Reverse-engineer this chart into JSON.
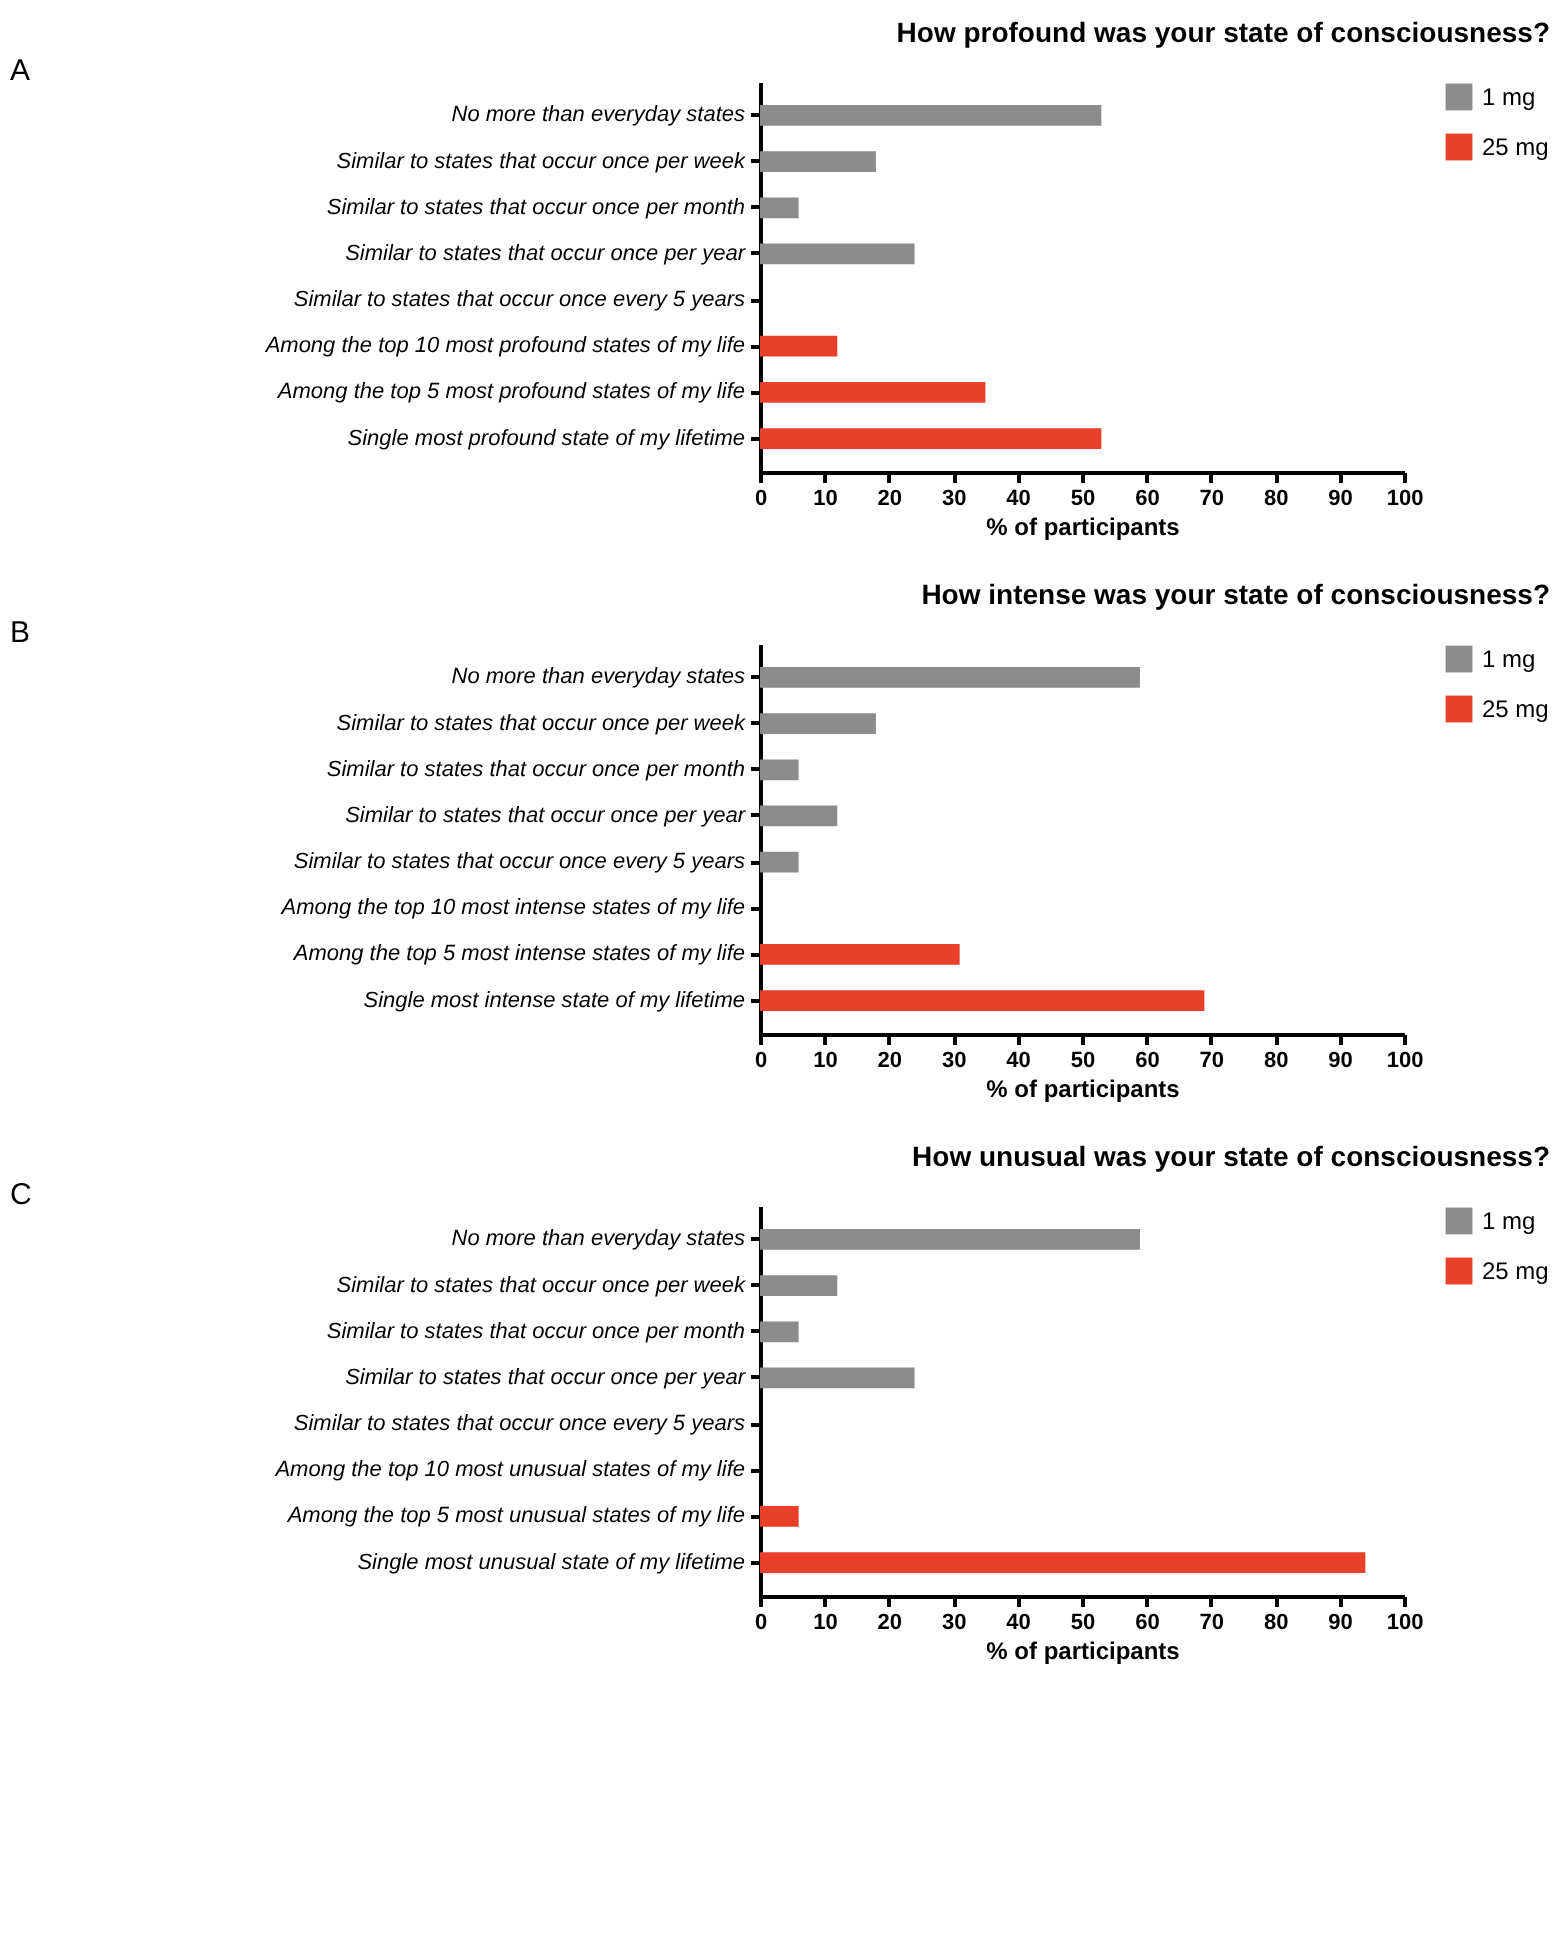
{
  "chart_data": [
    {
      "type": "bar",
      "orientation": "horizontal",
      "title": "How profound was your state of consciousness?",
      "annotations": [
        "A"
      ],
      "xlabel": "% of participants",
      "categories": [
        "No more than everyday states",
        "Similar to states that occur once per week",
        "Similar to states that occur once per month",
        "Similar to states that occur once per year",
        "Similar to states that occur once every 5 years",
        "Among the top 10 most profound states of my life",
        "Among the top 5 most profound states of my life",
        "Single most profound state of my lifetime"
      ],
      "series": [
        {
          "name": "1 mg",
          "color": "#8c8c8c",
          "values": [
            53,
            18,
            6,
            24,
            null,
            null,
            null,
            null
          ]
        },
        {
          "name": "25 mg",
          "color": "#e8402a",
          "values": [
            null,
            null,
            null,
            null,
            null,
            12,
            35,
            53
          ]
        }
      ],
      "xlim": [
        0,
        100
      ],
      "xticks": [
        0,
        10,
        20,
        30,
        40,
        50,
        60,
        70,
        80,
        90,
        100
      ],
      "legend": "top right"
    },
    {
      "type": "bar",
      "orientation": "horizontal",
      "title": "How intense was your state of consciousness?",
      "annotations": [
        "B"
      ],
      "xlabel": "% of participants",
      "categories": [
        "No more than everyday states",
        "Similar to states that occur once per week",
        "Similar to states that occur once per month",
        "Similar to states that occur once per year",
        "Similar to states that occur once every 5 years",
        "Among the top 10 most intense states of my life",
        "Among the top 5 most intense states of my life",
        "Single most intense state of my lifetime"
      ],
      "series": [
        {
          "name": "1 mg",
          "color": "#8c8c8c",
          "values": [
            59,
            18,
            6,
            12,
            6,
            null,
            null,
            null
          ]
        },
        {
          "name": "25 mg",
          "color": "#e8402a",
          "values": [
            null,
            null,
            null,
            null,
            null,
            null,
            31,
            69
          ]
        }
      ],
      "xlim": [
        0,
        100
      ],
      "xticks": [
        0,
        10,
        20,
        30,
        40,
        50,
        60,
        70,
        80,
        90,
        100
      ],
      "legend": "top right"
    },
    {
      "type": "bar",
      "orientation": "horizontal",
      "title": "How unusual was your state of consciousness?",
      "annotations": [
        "C"
      ],
      "xlabel": "% of participants",
      "categories": [
        "No more than everyday states",
        "Similar to states that occur once per week",
        "Similar to states that occur once per month",
        "Similar to states that occur once per year",
        "Similar to states that occur once every 5 years",
        "Among the top 10 most unusual states of my life",
        "Among the top 5 most unusual states of my life",
        "Single most unusual state of my lifetime"
      ],
      "series": [
        {
          "name": "1 mg",
          "color": "#8c8c8c",
          "values": [
            59,
            12,
            6,
            24,
            null,
            null,
            null,
            null
          ]
        },
        {
          "name": "25 mg",
          "color": "#e8402a",
          "values": [
            null,
            null,
            null,
            null,
            null,
            null,
            6,
            94
          ]
        }
      ],
      "xlim": [
        0,
        100
      ],
      "xticks": [
        0,
        10,
        20,
        30,
        40,
        50,
        60,
        70,
        80,
        90,
        100
      ],
      "legend": "top right"
    }
  ]
}
